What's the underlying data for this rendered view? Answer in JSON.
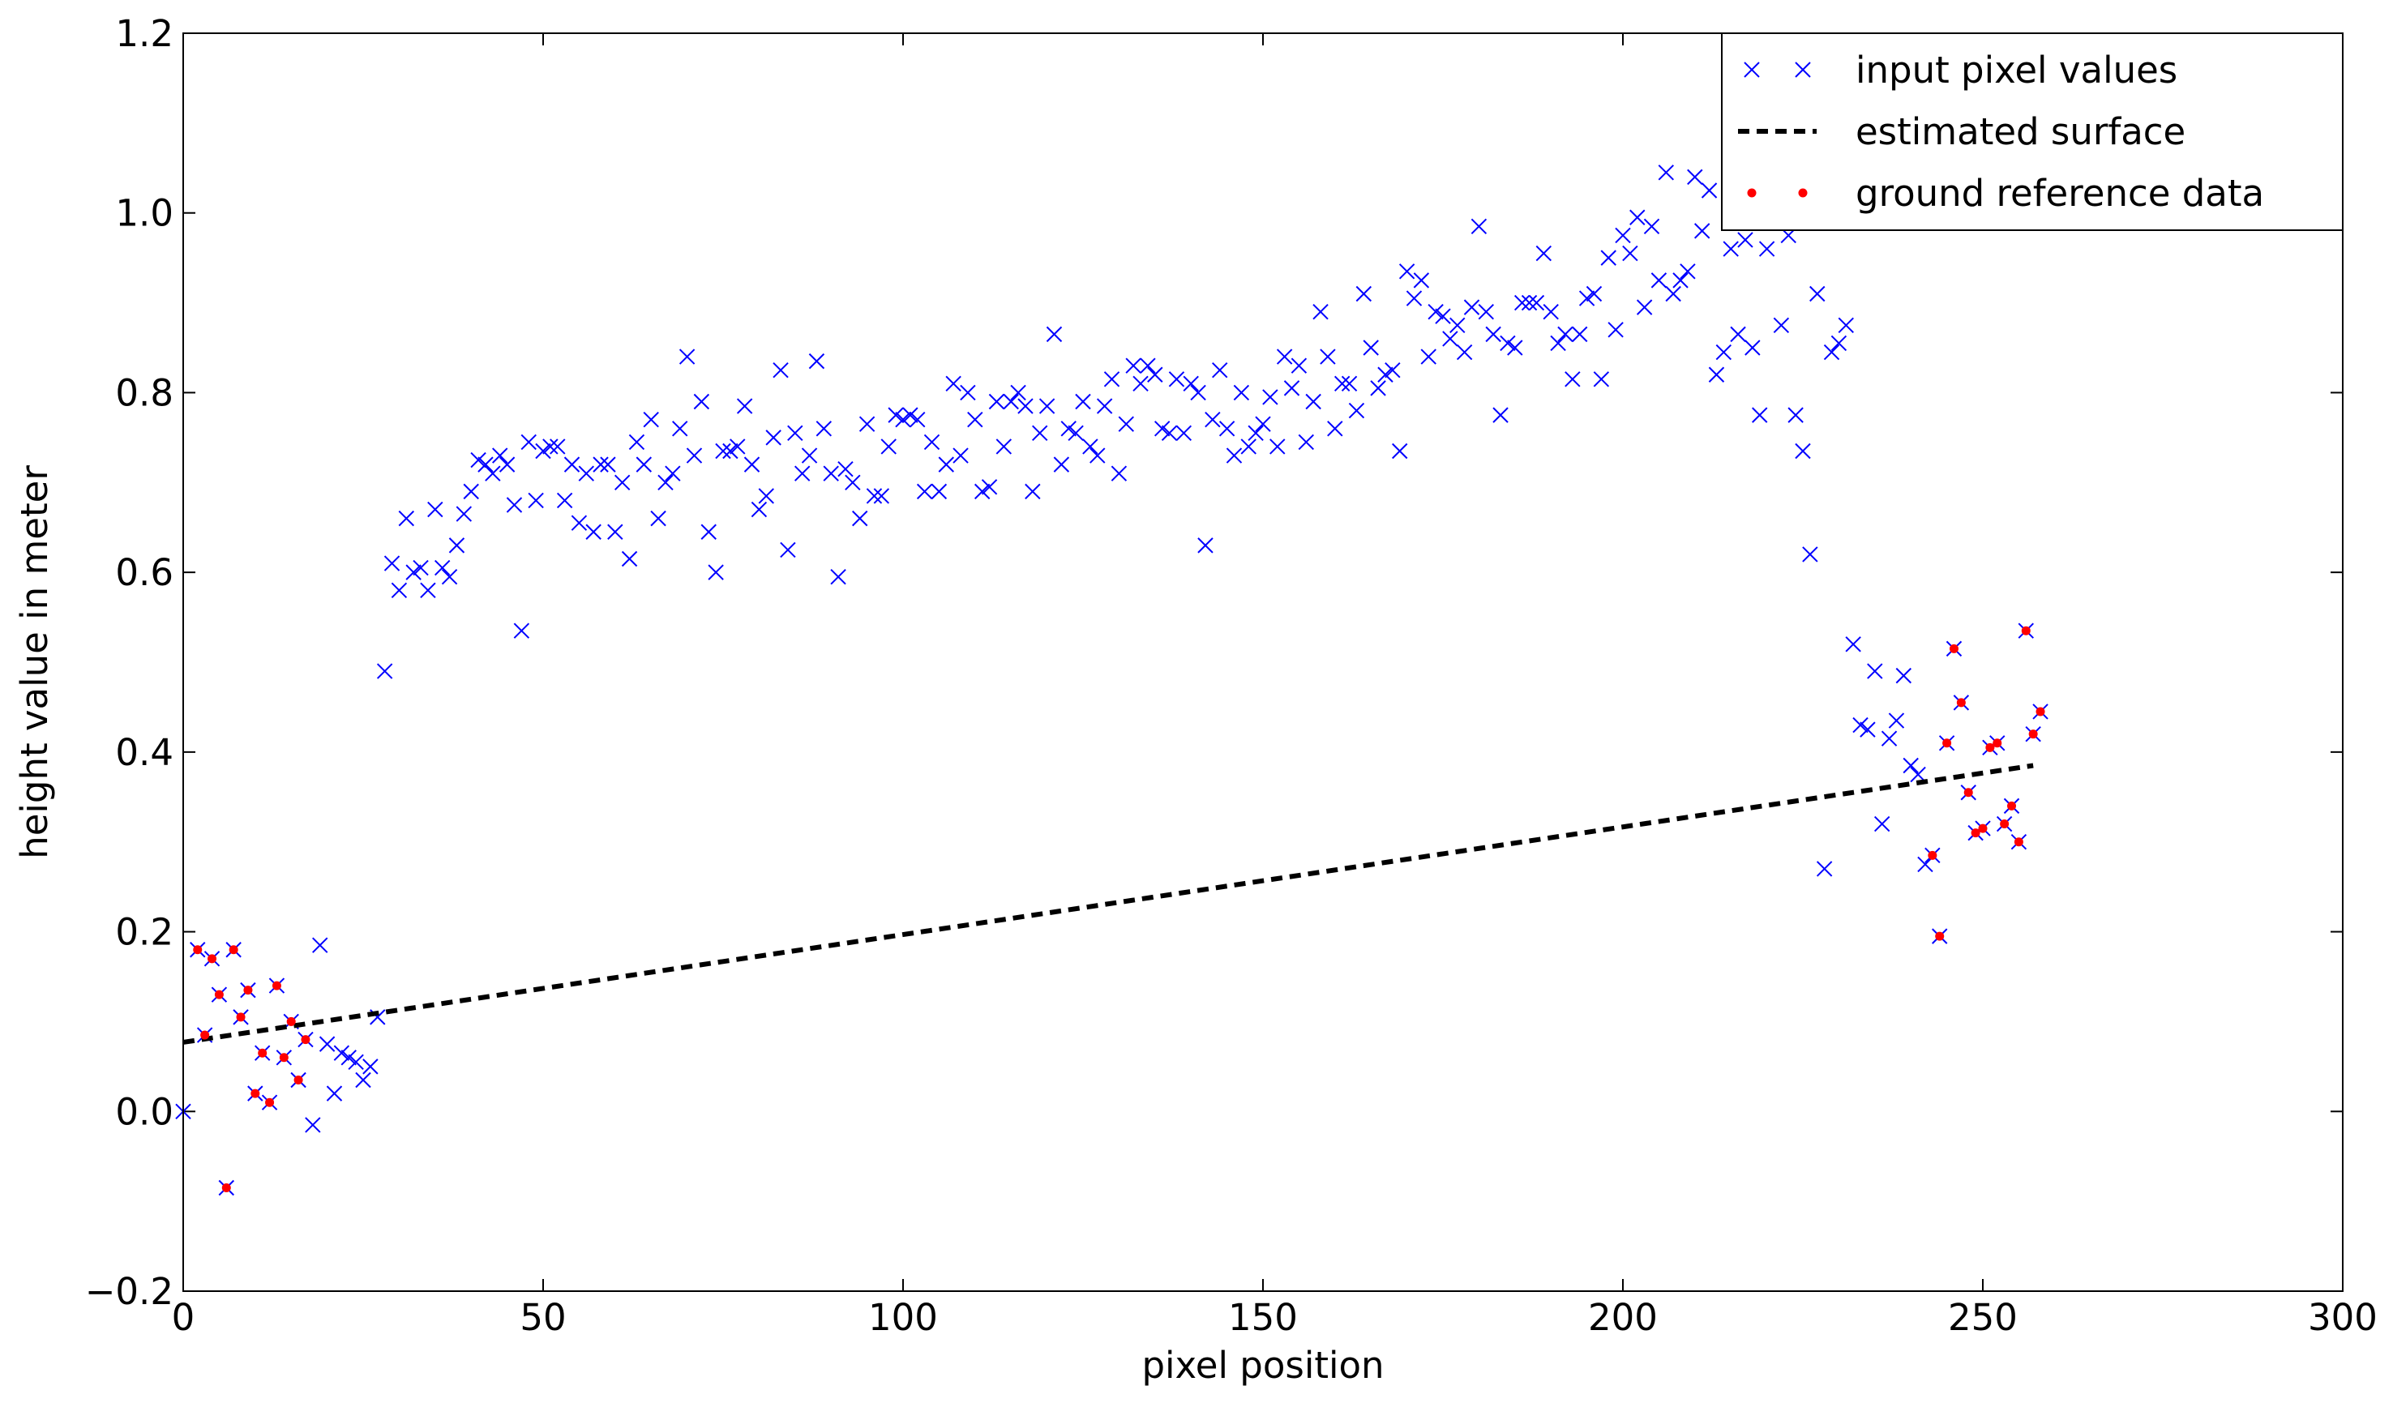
{
  "chart_data": {
    "type": "scatter",
    "xlabel": "pixel position",
    "ylabel": "height value in meter",
    "xlim": [
      0,
      300
    ],
    "xticks": [
      0,
      50,
      100,
      150,
      200,
      250,
      300
    ],
    "ylim": [
      -0.2,
      1.2
    ],
    "yticks": [
      {
        "value": -0.2,
        "label": "−0.2"
      },
      {
        "value": 0,
        "label": "0.0"
      },
      0.2,
      0.4,
      0.6,
      0.8,
      {
        "value": 1,
        "label": "1.0"
      },
      1.2
    ],
    "legend": "upper right",
    "series": [
      {
        "name": "input pixel values",
        "color": "#0000ff",
        "marker": "x",
        "x": [
          0,
          2,
          3,
          4,
          5,
          6,
          7,
          8,
          9,
          10,
          11,
          12,
          13,
          14,
          15,
          16,
          17,
          18,
          19,
          20,
          21,
          22,
          23,
          24,
          25,
          26,
          27,
          28,
          29,
          30,
          31,
          32,
          33,
          34,
          35,
          36,
          37,
          38,
          39,
          40,
          41,
          42,
          43,
          44,
          45,
          46,
          47,
          48,
          49,
          50,
          51,
          52,
          53,
          54,
          55,
          56,
          57,
          58,
          59,
          60,
          61,
          62,
          63,
          64,
          65,
          66,
          67,
          68,
          69,
          70,
          71,
          72,
          73,
          74,
          75,
          76,
          77,
          78,
          79,
          80,
          81,
          82,
          83,
          84,
          85,
          86,
          87,
          88,
          89,
          90,
          91,
          92,
          93,
          94,
          95,
          96,
          97,
          98,
          99,
          100,
          101,
          102,
          103,
          104,
          105,
          106,
          107,
          108,
          109,
          110,
          111,
          112,
          113,
          114,
          115,
          116,
          117,
          118,
          119,
          120,
          121,
          122,
          123,
          124,
          125,
          126,
          127,
          128,
          129,
          130,
          131,
          132,
          133,
          134,
          135,
          136,
          137,
          138,
          139,
          140,
          141,
          142,
          143,
          144,
          145,
          146,
          147,
          148,
          149,
          150,
          151,
          152,
          153,
          154,
          155,
          156,
          157,
          158,
          159,
          160,
          161,
          162,
          163,
          164,
          165,
          166,
          167,
          168,
          169,
          170,
          171,
          172,
          173,
          174,
          175,
          176,
          177,
          178,
          179,
          180,
          181,
          182,
          183,
          184,
          185,
          186,
          187,
          188,
          189,
          190,
          191,
          192,
          193,
          194,
          195,
          196,
          197,
          198,
          199,
          200,
          201,
          202,
          203,
          204,
          205,
          206,
          207,
          208,
          209,
          210,
          211,
          212,
          213,
          214,
          215,
          216,
          217,
          218,
          219,
          220,
          221,
          222,
          223,
          224,
          225,
          226,
          227,
          228,
          229,
          230,
          231,
          232,
          233,
          234,
          235,
          236,
          237,
          238,
          239,
          240,
          241,
          242,
          243,
          244,
          245,
          246,
          247,
          248,
          249,
          250,
          251,
          252,
          253,
          254,
          255,
          256,
          257,
          258
        ],
        "values": [
          0,
          0.18,
          0.085,
          0.17,
          0.13,
          -0.085,
          0.18,
          0.105,
          0.135,
          0.02,
          0.065,
          0.01,
          0.14,
          0.06,
          0.1,
          0.035,
          0.08,
          -0.015,
          0.185,
          0.075,
          0.02,
          0.065,
          0.06,
          0.055,
          0.035,
          0.05,
          0.105,
          0.49,
          0.61,
          0.58,
          0.66,
          0.6,
          0.605,
          0.58,
          0.67,
          0.605,
          0.595,
          0.63,
          0.665,
          0.69,
          0.725,
          0.72,
          0.71,
          0.73,
          0.72,
          0.675,
          0.535,
          0.745,
          0.68,
          0.735,
          0.74,
          0.74,
          0.68,
          0.72,
          0.655,
          0.71,
          0.645,
          0.72,
          0.72,
          0.645,
          0.7,
          0.615,
          0.745,
          0.72,
          0.77,
          0.66,
          0.7,
          0.71,
          0.76,
          0.84,
          0.73,
          0.79,
          0.645,
          0.6,
          0.735,
          0.735,
          0.74,
          0.785,
          0.72,
          0.67,
          0.685,
          0.75,
          0.825,
          0.625,
          0.755,
          0.71,
          0.73,
          0.835,
          0.76,
          0.71,
          0.595,
          0.715,
          0.7,
          0.66,
          0.765,
          0.685,
          0.685,
          0.74,
          0.775,
          0.77,
          0.775,
          0.77,
          0.69,
          0.745,
          0.69,
          0.72,
          0.81,
          0.73,
          0.8,
          0.77,
          0.69,
          0.695,
          0.79,
          0.74,
          0.79,
          0.8,
          0.785,
          0.69,
          0.755,
          0.785,
          0.865,
          0.72,
          0.76,
          0.755,
          0.79,
          0.74,
          0.73,
          0.785,
          0.815,
          0.71,
          0.765,
          0.83,
          0.81,
          0.83,
          0.82,
          0.76,
          0.755,
          0.815,
          0.755,
          0.81,
          0.8,
          0.63,
          0.77,
          0.825,
          0.76,
          0.73,
          0.8,
          0.74,
          0.755,
          0.765,
          0.795,
          0.74,
          0.84,
          0.805,
          0.83,
          0.745,
          0.79,
          0.89,
          0.84,
          0.76,
          0.81,
          0.81,
          0.78,
          0.91,
          0.85,
          0.805,
          0.82,
          0.825,
          0.735,
          0.935,
          0.905,
          0.925,
          0.84,
          0.89,
          0.885,
          0.86,
          0.875,
          0.845,
          0.895,
          0.985,
          0.89,
          0.865,
          0.775,
          0.855,
          0.85,
          0.9,
          0.9,
          0.9,
          0.955,
          0.89,
          0.855,
          0.865,
          0.815,
          0.865,
          0.905,
          0.91,
          0.815,
          0.95,
          0.87,
          0.975,
          0.955,
          0.995,
          0.895,
          0.985,
          0.925,
          1.045,
          0.91,
          0.925,
          0.935,
          1.04,
          0.98,
          1.025,
          0.82,
          0.845,
          0.96,
          0.865,
          0.97,
          0.85,
          0.775,
          0.96,
          0.99,
          0.875,
          0.975,
          0.775,
          0.735,
          0.62,
          0.91,
          0.27,
          0.845,
          0.855,
          0.875,
          0.52,
          0.43,
          0.425,
          0.49,
          0.32,
          0.415,
          0.435,
          0.485,
          0.385,
          0.375,
          0.275,
          0.285,
          0.195,
          0.41,
          0.515,
          0.455,
          0.355,
          0.31,
          0.315,
          0.405,
          0.41,
          0.32,
          0.34,
          0.3,
          0.535,
          0.42,
          0.445
        ]
      },
      {
        "name": "estimated surface",
        "color": "#000000",
        "marker": "dashed-line",
        "x": [
          0,
          257
        ],
        "values": [
          0.077,
          0.385
        ]
      },
      {
        "name": "ground reference data",
        "color": "#ff0000",
        "marker": "o",
        "x": [
          2,
          3,
          4,
          5,
          6,
          7,
          8,
          9,
          10,
          11,
          12,
          13,
          14,
          15,
          16,
          17,
          243,
          244,
          245,
          246,
          247,
          248,
          249,
          250,
          251,
          252,
          253,
          254,
          255,
          256,
          257,
          258
        ],
        "values": [
          0.18,
          0.085,
          0.17,
          0.13,
          -0.085,
          0.18,
          0.105,
          0.135,
          0.02,
          0.065,
          0.01,
          0.14,
          0.06,
          0.1,
          0.035,
          0.08,
          0.285,
          0.195,
          0.41,
          0.515,
          0.455,
          0.355,
          0.31,
          0.315,
          0.405,
          0.41,
          0.32,
          0.34,
          0.3,
          0.535,
          0.42,
          0.445
        ]
      }
    ]
  }
}
